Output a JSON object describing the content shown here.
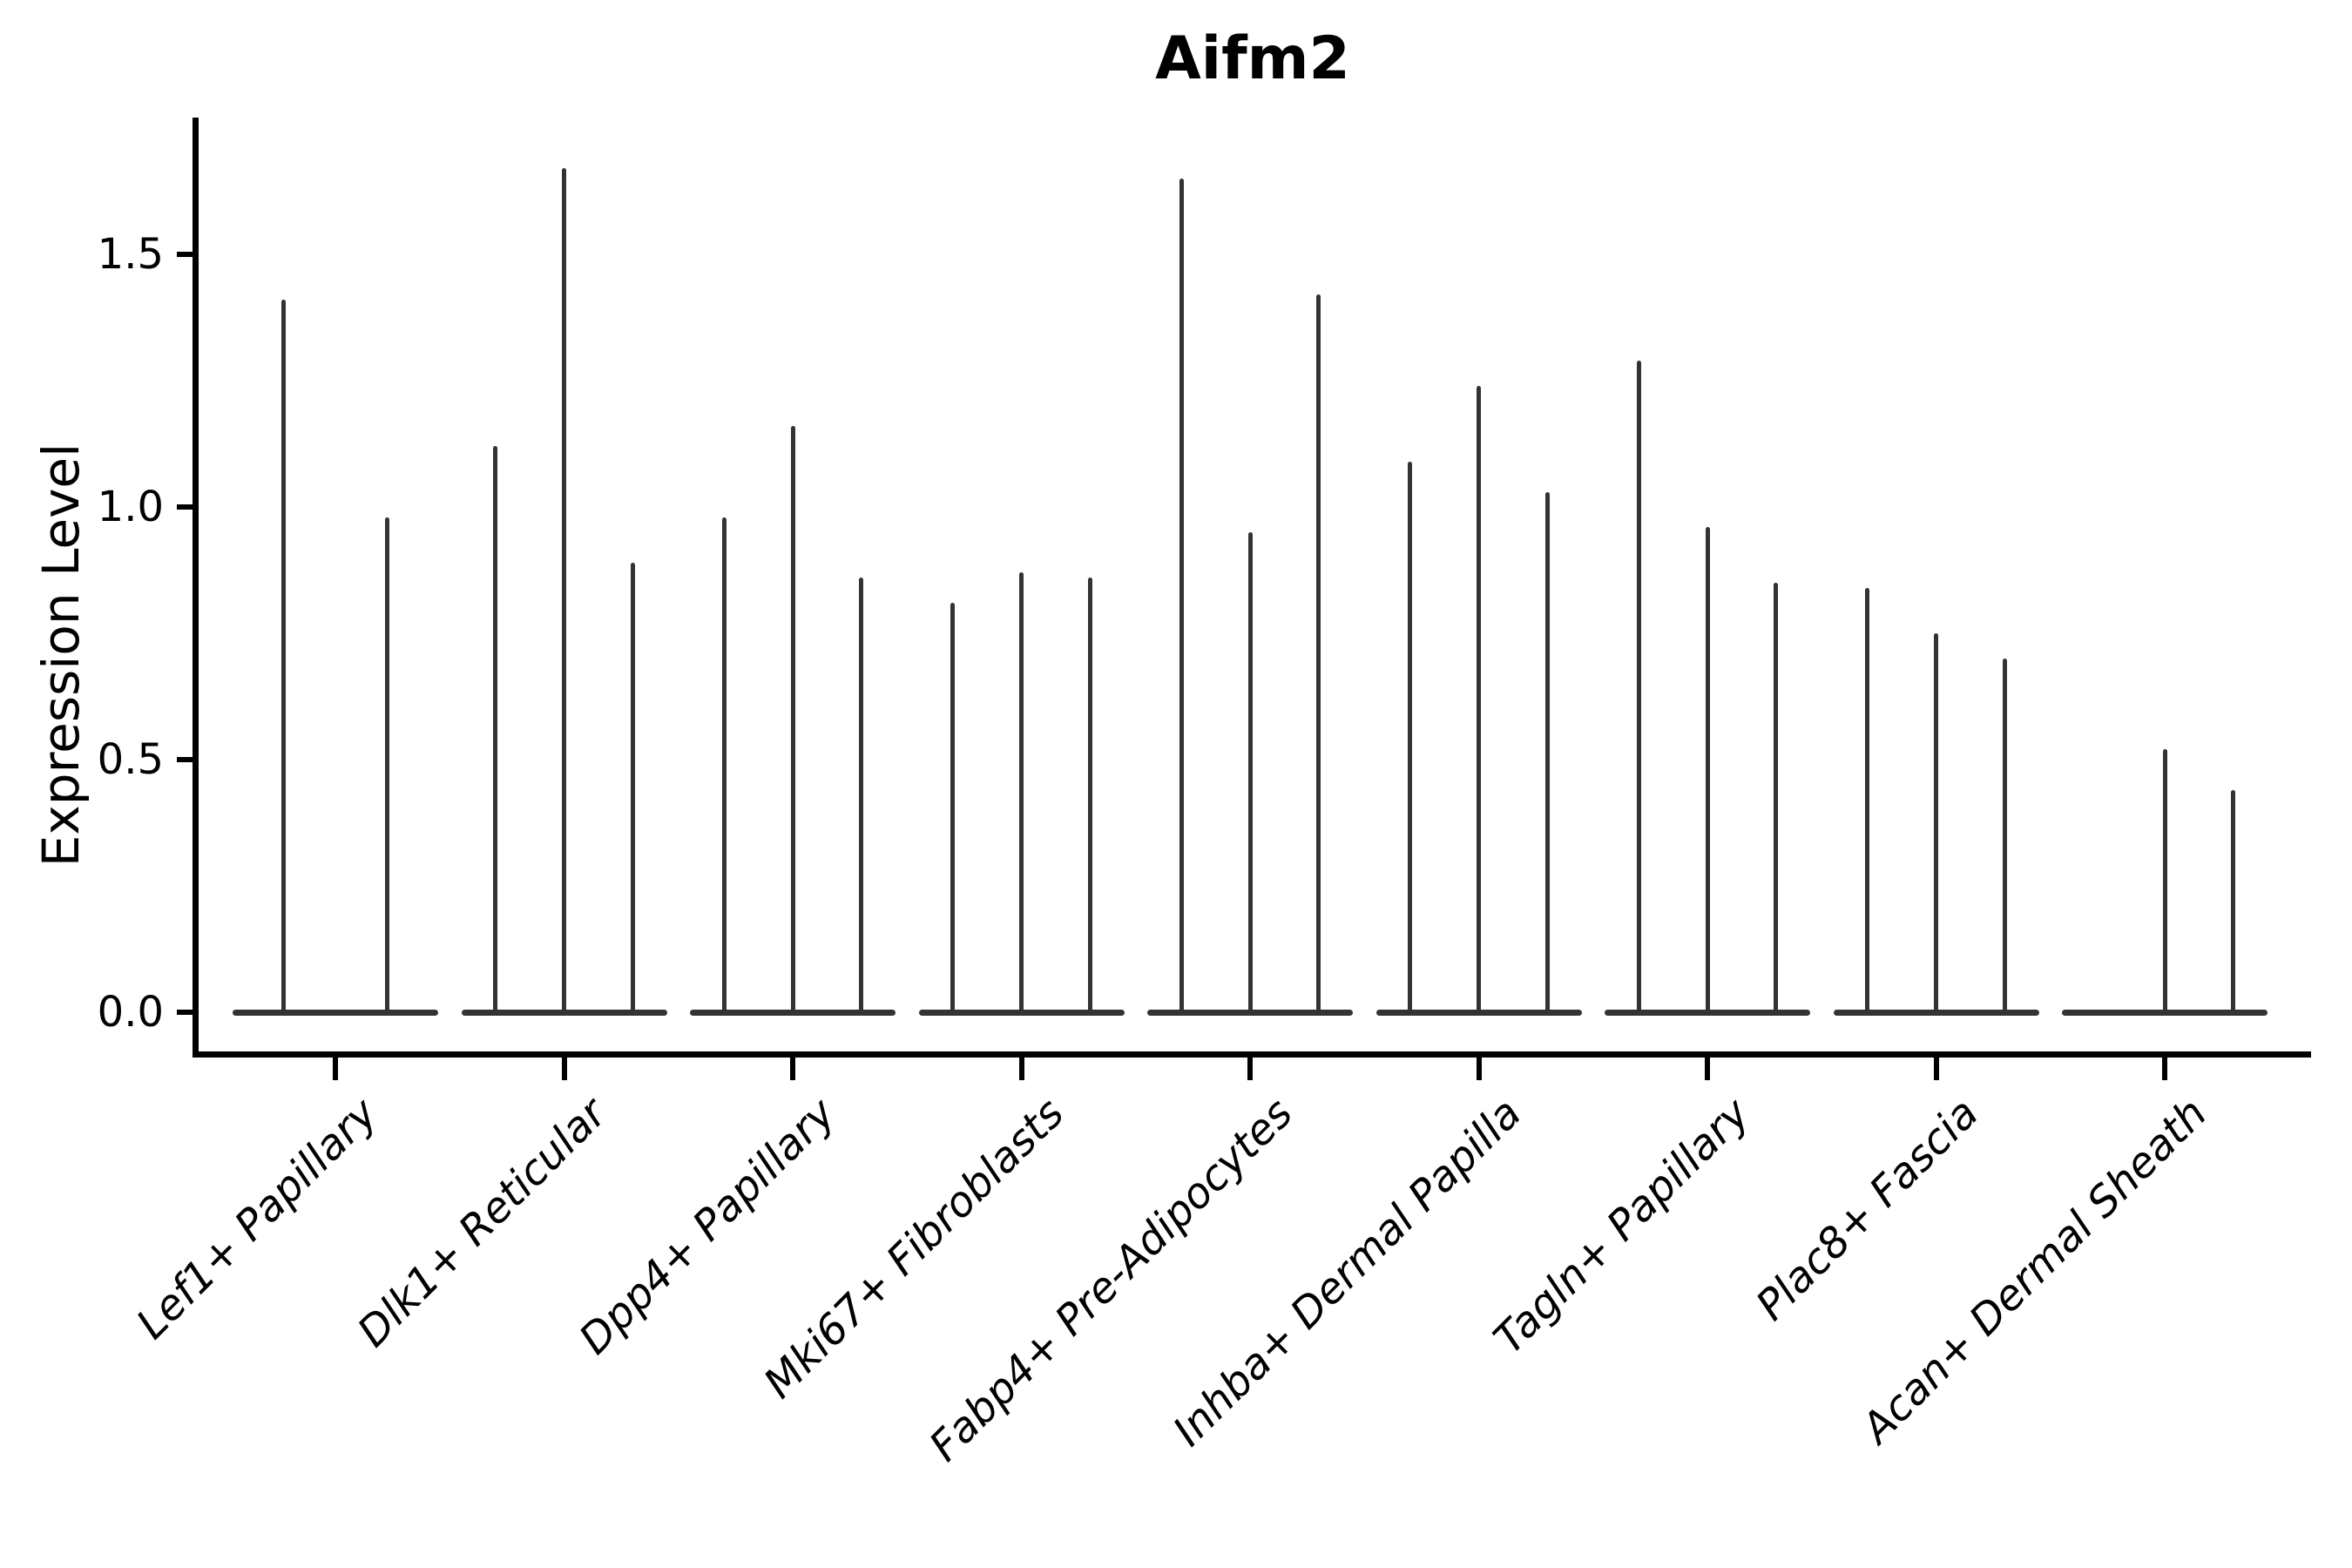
{
  "title": "Aifm2",
  "ylabel": "Expression Level",
  "chart_data": {
    "type": "violin",
    "title": "Aifm2",
    "xlabel": "",
    "ylabel": "Expression Level",
    "ylim": [
      0,
      1.77
    ],
    "yticks": [
      0.0,
      0.5,
      1.0,
      1.5
    ],
    "ytick_labels": [
      "0.0",
      "0.5",
      "1.0",
      "1.5"
    ],
    "grid": "off",
    "legend": "none",
    "description": "Violin plot of Aifm2 expression; each category contains 2-3 very thin sub-violins (spikes) rising from a flat base of zeros at expression 0. 'peaks' lists the maximum expression reached by each sub-violin, left to right (0 = flat violin with no spike).",
    "categories": [
      "Lef1+ Papillary",
      "Dlk1+ Reticular",
      "Dpp4+ Papillary",
      "Mki67+ Fibroblasts",
      "Fabp4+ Pre-Adipocytes",
      "Inhba+ Dermal Papilla",
      "Tagln+ Papillary",
      "Plac8+ Fascia",
      "Acan+ Dermal Sheath"
    ],
    "groups": [
      {
        "category": "Lef1+ Papillary",
        "peaks": [
          1.41,
          0.98
        ]
      },
      {
        "category": "Dlk1+ Reticular",
        "peaks": [
          1.12,
          1.67,
          0.89
        ]
      },
      {
        "category": "Dpp4+ Papillary",
        "peaks": [
          0.98,
          1.16,
          0.86
        ]
      },
      {
        "category": "Mki67+ Fibroblasts",
        "peaks": [
          0.81,
          0.87,
          0.86
        ]
      },
      {
        "category": "Fabp4+ Pre-Adipocytes",
        "peaks": [
          1.65,
          0.95,
          1.42
        ]
      },
      {
        "category": "Inhba+ Dermal Papilla",
        "peaks": [
          1.09,
          1.24,
          1.03
        ]
      },
      {
        "category": "Tagln+ Papillary",
        "peaks": [
          1.29,
          0.96,
          0.85
        ]
      },
      {
        "category": "Plac8+ Fascia",
        "peaks": [
          0.84,
          0.75,
          0.7
        ]
      },
      {
        "category": "Acan+ Dermal Sheath",
        "peaks": [
          0.0,
          0.52,
          0.44
        ]
      }
    ],
    "colors": {
      "violin": "#333333",
      "axis": "#000000",
      "text": "#000000",
      "background": "#ffffff"
    }
  }
}
